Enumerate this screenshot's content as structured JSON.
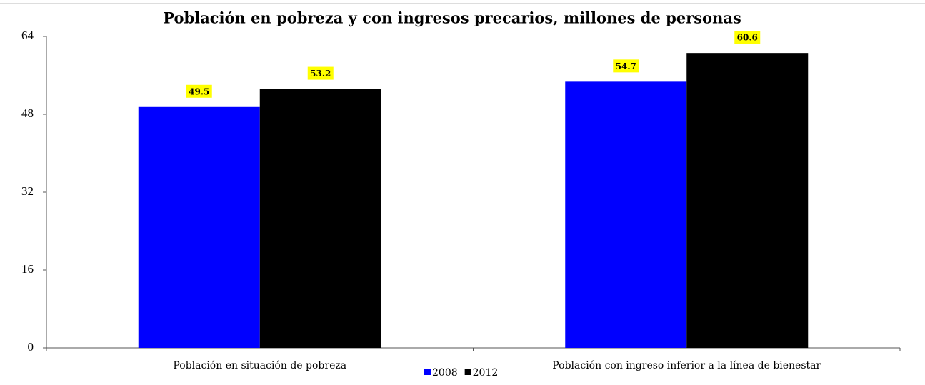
{
  "chart_data": {
    "type": "bar",
    "title": "Población en pobreza y con ingresos precarios, millones de personas",
    "categories": [
      "Población en situación de pobreza",
      "Población con ingreso inferior a la línea de bienestar"
    ],
    "series": [
      {
        "name": "2008",
        "color": "#0000ff",
        "values": [
          49.5,
          54.7
        ]
      },
      {
        "name": "2012",
        "color": "#000000",
        "values": [
          53.2,
          60.6
        ]
      }
    ],
    "ylim": [
      0,
      64
    ],
    "yticks": [
      0,
      16,
      32,
      48,
      64
    ],
    "grid": false,
    "legend": "bottom",
    "value_label_color": "#ffff00"
  }
}
